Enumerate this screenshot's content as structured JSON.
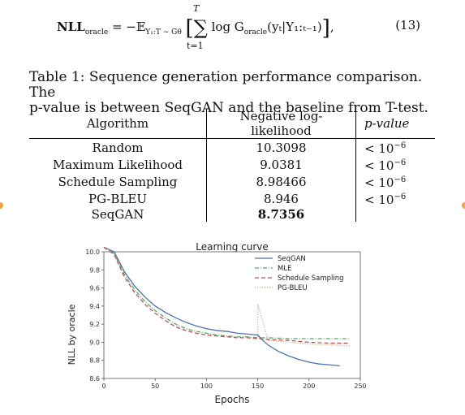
{
  "equation": {
    "lhs": "NLL",
    "lhs_sub": "oracle",
    "eq": "= −𝔼",
    "exp_sub": "Y₁:T ∼ Gθ",
    "sum_top": "T",
    "sum_bottom": "t=1",
    "body": "log G",
    "body_sub": "oracle",
    "body_args": "(yₜ|Y₁:ₜ₋₁)",
    "number": "(13)"
  },
  "caption": {
    "line1": "Table 1: Sequence generation performance comparison. The",
    "line2": "p-value is between SeqGAN and the baseline from T-test."
  },
  "table": {
    "headers": [
      "Algorithm",
      "Negative log-likelihood",
      "p-value"
    ],
    "rows": [
      {
        "algorithm": "Random",
        "nll": "10.3098",
        "p": "< 10",
        "p_exp": "−6"
      },
      {
        "algorithm": "Maximum Likelihood",
        "nll": "9.0381",
        "p": "< 10",
        "p_exp": "−6"
      },
      {
        "algorithm": "Schedule Sampling",
        "nll": "8.98466",
        "p": "< 10",
        "p_exp": "−6"
      },
      {
        "algorithm": "PG-BLEU",
        "nll": "8.946",
        "p": "< 10",
        "p_exp": "−6"
      },
      {
        "algorithm": "SeqGAN",
        "nll": "8.7356",
        "p": "",
        "p_exp": ""
      }
    ]
  },
  "chart_data": {
    "type": "line",
    "title": "Learning curve",
    "xlabel": "Epochs",
    "ylabel": "NLL by oracle",
    "xlim": [
      0,
      250
    ],
    "ylim": [
      8.6,
      10.0
    ],
    "xticks": [
      "0",
      "50",
      "100",
      "150",
      "200",
      "250"
    ],
    "yticks": [
      "8.6",
      "8.8",
      "9.0",
      "9.2",
      "9.4",
      "9.6",
      "9.8",
      "10.0"
    ],
    "legend_position": "top-right",
    "series": [
      {
        "name": "SeqGAN",
        "color": "#4c72b0",
        "style": "solid",
        "x": [
          0,
          10,
          20,
          30,
          40,
          50,
          60,
          70,
          80,
          90,
          100,
          110,
          120,
          130,
          140,
          150,
          155,
          160,
          170,
          180,
          190,
          200,
          210,
          220,
          230
        ],
        "y": [
          10.05,
          10.0,
          9.78,
          9.62,
          9.5,
          9.4,
          9.33,
          9.27,
          9.22,
          9.18,
          9.15,
          9.13,
          9.12,
          9.1,
          9.09,
          9.08,
          9.02,
          8.97,
          8.9,
          8.85,
          8.81,
          8.78,
          8.76,
          8.75,
          8.74
        ]
      },
      {
        "name": "MLE",
        "color": "#55a868",
        "style": "dashdot",
        "x": [
          0,
          10,
          20,
          30,
          40,
          50,
          60,
          70,
          80,
          90,
          100,
          110,
          120,
          130,
          140,
          150,
          160,
          180,
          200,
          220,
          240
        ],
        "y": [
          10.05,
          9.98,
          9.75,
          9.58,
          9.45,
          9.35,
          9.27,
          9.2,
          9.15,
          9.12,
          9.1,
          9.08,
          9.07,
          9.06,
          9.06,
          9.05,
          9.05,
          9.04,
          9.04,
          9.04,
          9.04
        ]
      },
      {
        "name": "Schedule Sampling",
        "color": "#c44e52",
        "style": "dashed",
        "x": [
          0,
          10,
          20,
          30,
          40,
          50,
          60,
          70,
          80,
          90,
          100,
          110,
          120,
          130,
          140,
          150,
          160,
          180,
          200,
          220,
          240
        ],
        "y": [
          10.05,
          9.97,
          9.72,
          9.55,
          9.42,
          9.32,
          9.24,
          9.17,
          9.13,
          9.1,
          9.08,
          9.07,
          9.06,
          9.05,
          9.05,
          9.04,
          9.03,
          9.02,
          9.0,
          8.99,
          8.99
        ]
      },
      {
        "name": "PG-BLEU",
        "color": "#d8a060",
        "style": "dotted",
        "x": [
          150,
          150,
          160,
          180,
          200,
          220,
          240
        ],
        "y": [
          9.06,
          9.42,
          9.02,
          9.0,
          8.98,
          8.97,
          8.96
        ]
      }
    ]
  }
}
